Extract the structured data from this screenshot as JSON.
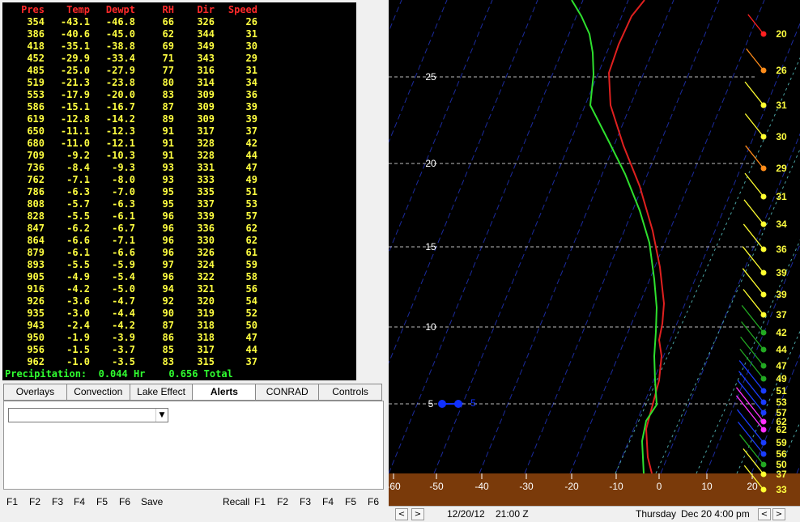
{
  "table": {
    "headers": [
      "Pres",
      "Temp",
      "Dewpt",
      "RH",
      "Dir",
      "Speed"
    ],
    "rows": [
      [
        "354",
        "-43.1",
        "-46.8",
        "66",
        "326",
        "26"
      ],
      [
        "386",
        "-40.6",
        "-45.0",
        "62",
        "344",
        "31"
      ],
      [
        "418",
        "-35.1",
        "-38.8",
        "69",
        "349",
        "30"
      ],
      [
        "452",
        "-29.9",
        "-33.4",
        "71",
        "343",
        "29"
      ],
      [
        "485",
        "-25.0",
        "-27.9",
        "77",
        "316",
        "31"
      ],
      [
        "519",
        "-21.3",
        "-23.8",
        "80",
        "314",
        "34"
      ],
      [
        "553",
        "-17.9",
        "-20.0",
        "83",
        "309",
        "36"
      ],
      [
        "586",
        "-15.1",
        "-16.7",
        "87",
        "309",
        "39"
      ],
      [
        "619",
        "-12.8",
        "-14.2",
        "89",
        "309",
        "39"
      ],
      [
        "650",
        "-11.1",
        "-12.3",
        "91",
        "317",
        "37"
      ],
      [
        "680",
        "-11.0",
        "-12.1",
        "91",
        "328",
        "42"
      ],
      [
        "709",
        "-9.2",
        "-10.3",
        "91",
        "328",
        "44"
      ],
      [
        "736",
        "-8.4",
        "-9.3",
        "93",
        "331",
        "47"
      ],
      [
        "762",
        "-7.1",
        "-8.0",
        "93",
        "333",
        "49"
      ],
      [
        "786",
        "-6.3",
        "-7.0",
        "95",
        "335",
        "51"
      ],
      [
        "808",
        "-5.7",
        "-6.3",
        "95",
        "337",
        "53"
      ],
      [
        "828",
        "-5.5",
        "-6.1",
        "96",
        "339",
        "57"
      ],
      [
        "847",
        "-6.2",
        "-6.7",
        "96",
        "336",
        "62"
      ],
      [
        "864",
        "-6.6",
        "-7.1",
        "96",
        "330",
        "62"
      ],
      [
        "879",
        "-6.1",
        "-6.6",
        "96",
        "326",
        "61"
      ],
      [
        "893",
        "-5.5",
        "-5.9",
        "97",
        "324",
        "59"
      ],
      [
        "905",
        "-4.9",
        "-5.4",
        "96",
        "322",
        "58"
      ],
      [
        "916",
        "-4.2",
        "-5.0",
        "94",
        "321",
        "56"
      ],
      [
        "926",
        "-3.6",
        "-4.7",
        "92",
        "320",
        "54"
      ],
      [
        "935",
        "-3.0",
        "-4.4",
        "90",
        "319",
        "52"
      ],
      [
        "943",
        "-2.4",
        "-4.2",
        "87",
        "318",
        "50"
      ],
      [
        "950",
        "-1.9",
        "-3.9",
        "86",
        "318",
        "47"
      ],
      [
        "956",
        "-1.5",
        "-3.7",
        "85",
        "317",
        "44"
      ],
      [
        "962",
        "-1.0",
        "-3.5",
        "83",
        "315",
        "37"
      ]
    ],
    "precip_label": "Precipitation:",
    "precip_hr": "0.044 Hr",
    "precip_total": "0.656 Total"
  },
  "tabs": [
    "Overlays",
    "Convection",
    "Lake Effect",
    "Alerts",
    "CONRAD",
    "Controls"
  ],
  "active_tab": "Alerts",
  "dropdown": {
    "value": ""
  },
  "bottom": {
    "left_keys": [
      "F1",
      "F2",
      "F3",
      "F4",
      "F5",
      "F6"
    ],
    "save_label": "Save",
    "recall_label": "Recall",
    "right_keys": [
      "F1",
      "F2",
      "F3",
      "F4",
      "F5",
      "F6"
    ]
  },
  "sounding": {
    "height_ticks": [
      "25",
      "20",
      "15",
      "10",
      "5"
    ],
    "temp_ticks": [
      "-60",
      "-50",
      "-40",
      "-30",
      "-20",
      "-10",
      "0",
      "10",
      "20"
    ],
    "marker_label": "5",
    "wind_speeds": [
      "20",
      "26",
      "31",
      "30",
      "29",
      "31",
      "34",
      "36",
      "39",
      "39",
      "37",
      "42",
      "44",
      "47",
      "49",
      "51",
      "53",
      "57",
      "62",
      "62",
      "59",
      "56",
      "50",
      "37",
      "33"
    ]
  },
  "status": {
    "prev_icon": "arrow-left-icon",
    "next_icon": "arrow-right-icon",
    "date": "12/20/12",
    "time": "21:00 Z",
    "day": "Thursday",
    "local": "Dec 20  4:00 pm"
  },
  "colors": {
    "header": "#ff2a2a",
    "values": "#ffff40",
    "precip": "#30ff30",
    "temp_line": "#e0201f",
    "dew_line": "#2ee02e",
    "ground": "#7a3a0a"
  }
}
